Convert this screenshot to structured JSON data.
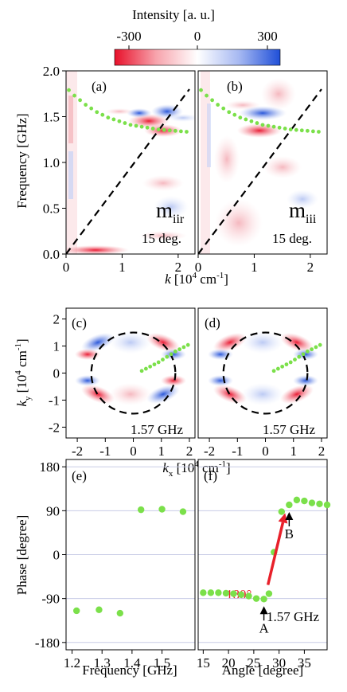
{
  "colorbar": {
    "title": "Intensity [a. u.]",
    "ticks": [
      "-300",
      "0",
      "300"
    ],
    "colors": {
      "neg": "#e8102a",
      "zero": "#ffffff",
      "pos": "#1f4fd8"
    }
  },
  "colors": {
    "green": "#7be04a",
    "red_arrow": "#e8202a",
    "dashed": "#000000",
    "grid": "#c8cbe6"
  },
  "chart_data": [
    {
      "panel": "(a)",
      "type": "heatmap",
      "label_main": "m",
      "label_sub": "iir",
      "annotation": "15 deg.",
      "xlabel_italic": "k",
      "xlabel_rest": " [10",
      "xlabel_sup": "4",
      "xlabel_end": " cm",
      "xlabel_sup2": "-1",
      "xlabel_close": "]",
      "ylabel": "Frequency [GHz]",
      "xlim": [
        0,
        2.3
      ],
      "ylim": [
        0,
        2.0
      ],
      "xticks": [
        "0",
        "1",
        "2"
      ],
      "yticks": [
        "0.0",
        "0.5",
        "1.0",
        "1.5",
        "2.0"
      ],
      "dashed_line": {
        "x": [
          0,
          2.2
        ],
        "y": [
          0,
          1.8
        ]
      },
      "green_dots": {
        "x": [
          0.05,
          0.15,
          0.25,
          0.35,
          0.45,
          0.55,
          0.65,
          0.75,
          0.85,
          0.95,
          1.05,
          1.15,
          1.25,
          1.35,
          1.45,
          1.55,
          1.65,
          1.75,
          1.85,
          1.95,
          2.05,
          2.15
        ],
        "y": [
          1.79,
          1.73,
          1.68,
          1.63,
          1.59,
          1.55,
          1.52,
          1.49,
          1.47,
          1.45,
          1.43,
          1.41,
          1.4,
          1.39,
          1.38,
          1.37,
          1.36,
          1.355,
          1.35,
          1.345,
          1.34,
          1.335
        ]
      }
    },
    {
      "panel": "(b)",
      "type": "heatmap",
      "label_main": "m",
      "label_sub": "iii",
      "annotation": "15 deg.",
      "xlim": [
        0,
        2.3
      ],
      "ylim": [
        0,
        2.0
      ],
      "xticks": [
        "0",
        "1",
        "2"
      ],
      "dashed_line": {
        "x": [
          0,
          2.2
        ],
        "y": [
          0,
          1.8
        ]
      },
      "green_dots": {
        "x": [
          0.05,
          0.15,
          0.25,
          0.35,
          0.45,
          0.55,
          0.65,
          0.75,
          0.85,
          0.95,
          1.05,
          1.15,
          1.25,
          1.35,
          1.45,
          1.55,
          1.65,
          1.75,
          1.85,
          1.95,
          2.05,
          2.15
        ],
        "y": [
          1.79,
          1.73,
          1.68,
          1.63,
          1.59,
          1.55,
          1.52,
          1.49,
          1.47,
          1.45,
          1.43,
          1.41,
          1.4,
          1.39,
          1.38,
          1.37,
          1.36,
          1.355,
          1.35,
          1.345,
          1.34,
          1.335
        ]
      }
    },
    {
      "panel": "(c)",
      "type": "heatmap",
      "annotation": "1.57 GHz",
      "ylabel_italic": "k",
      "ylabel_sub": "y",
      "ylabel_rest": " [10",
      "ylabel_sup": "4",
      "ylabel_end": " cm",
      "ylabel_sup2": "-1",
      "ylabel_close": "]",
      "xlabel_italic": "k",
      "xlabel_sub": "x",
      "xlabel_rest": " [10",
      "xlabel_sup": "4",
      "xlabel_end": " cm",
      "xlabel_sup2": "-1",
      "xlabel_close": "]",
      "xlim": [
        -2.4,
        2.2
      ],
      "ylim": [
        -2.4,
        2.4
      ],
      "xticks": [
        "-2",
        "-1",
        "0",
        "1",
        "2"
      ],
      "yticks": [
        "-2",
        "-1",
        "0",
        "1",
        "2"
      ],
      "dashed_circle_radius": 1.5,
      "green_dots": {
        "x": [
          0.3,
          0.45,
          0.6,
          0.75,
          0.9,
          1.05,
          1.2,
          1.35,
          1.5,
          1.65,
          1.8,
          1.95
        ],
        "y": [
          0.08,
          0.16,
          0.24,
          0.32,
          0.4,
          0.5,
          0.6,
          0.7,
          0.8,
          0.88,
          0.96,
          1.04
        ]
      }
    },
    {
      "panel": "(d)",
      "type": "heatmap",
      "annotation": "1.57 GHz",
      "xlim": [
        -2.4,
        2.2
      ],
      "ylim": [
        -2.4,
        2.4
      ],
      "xticks": [
        "-2",
        "-1",
        "0",
        "1",
        "2"
      ],
      "dashed_circle_radius": 1.5,
      "green_dots": {
        "x": [
          0.3,
          0.45,
          0.6,
          0.75,
          0.9,
          1.05,
          1.2,
          1.35,
          1.5,
          1.65,
          1.8,
          1.95
        ],
        "y": [
          0.08,
          0.16,
          0.24,
          0.32,
          0.4,
          0.5,
          0.6,
          0.7,
          0.8,
          0.88,
          0.96,
          1.04
        ]
      }
    },
    {
      "panel": "(e)",
      "type": "scatter",
      "xlabel": "Frequency [GHz]",
      "ylabel": "Phase [degree]",
      "xlim": [
        1.18,
        1.61
      ],
      "ylim": [
        -195,
        195
      ],
      "xticks": [
        "1.2",
        "1.3",
        "1.4",
        "1.5"
      ],
      "xtick_values": [
        1.2,
        1.3,
        1.4,
        1.5
      ],
      "yticks": [
        "-180",
        "-90",
        "0",
        "90",
        "180"
      ],
      "ytick_values": [
        -180,
        -90,
        0,
        90,
        180
      ],
      "x": [
        1.215,
        1.29,
        1.36,
        1.43,
        1.5,
        1.57
      ],
      "y": [
        -115,
        -113,
        -120,
        92,
        93,
        88
      ]
    },
    {
      "panel": "(f)",
      "type": "scatter",
      "xlabel": "Angle [degree]",
      "annotation": "1.57 GHz",
      "arrow_label": "180°",
      "marker_A": "A",
      "marker_B": "B",
      "xlim": [
        14,
        39.5
      ],
      "ylim": [
        -195,
        195
      ],
      "xticks": [
        "15",
        "20",
        "25",
        "30",
        "35"
      ],
      "xtick_values": [
        15,
        20,
        25,
        30,
        35
      ],
      "x": [
        15,
        16.5,
        18,
        19.5,
        21,
        22.5,
        24,
        25.5,
        27,
        28,
        29,
        30.5,
        32,
        33.5,
        35,
        36.5,
        38,
        39.5
      ],
      "y": [
        -78,
        -78,
        -78,
        -79,
        -80,
        -82,
        -85,
        -90,
        -91,
        -80,
        5,
        88,
        102,
        112,
        110,
        106,
        104,
        102
      ],
      "arrow": {
        "from": [
          27.8,
          -62
        ],
        "to": [
          31.2,
          85
        ]
      },
      "marker_A_at": [
        27,
        -91
      ],
      "marker_B_at": [
        32,
        102
      ]
    }
  ]
}
